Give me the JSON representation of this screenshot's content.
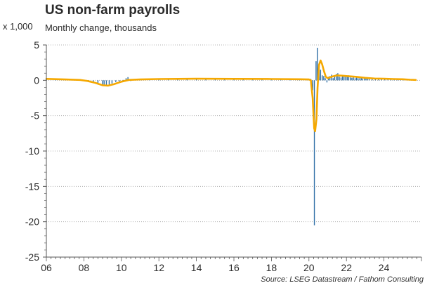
{
  "chart_data": {
    "type": "bar",
    "title": "US non-farm payrolls",
    "subtitle": "Monthly change, thousands",
    "ylabel": "x 1,000",
    "source": "Source: LSEG Datastream / Fathom Consulting",
    "ylim": [
      -25,
      5
    ],
    "xlim": [
      2006.0,
      2026.0
    ],
    "y_ticks": [
      5,
      0,
      -5,
      -10,
      -15,
      -20,
      -25
    ],
    "x_tick_values": [
      2006,
      2008,
      2010,
      2012,
      2014,
      2016,
      2018,
      2020,
      2022,
      2024
    ],
    "x_tick_labels": [
      "06",
      "08",
      "10",
      "12",
      "14",
      "16",
      "18",
      "20",
      "22",
      "24"
    ],
    "grid": "horizontal dotted",
    "colors": {
      "bars": "#2e6ea6",
      "average_line": "#f5a800"
    },
    "series": [
      {
        "type": "bar",
        "points": [
          [
            2006.0,
            0.25
          ],
          [
            2006.5,
            0.2
          ],
          [
            2007.0,
            0.12
          ],
          [
            2007.5,
            0.1
          ],
          [
            2008.0,
            -0.05
          ],
          [
            2008.25,
            -0.15
          ],
          [
            2008.5,
            -0.25
          ],
          [
            2008.75,
            -0.5
          ],
          [
            2009.0,
            -0.75
          ],
          [
            2009.08,
            -0.7
          ],
          [
            2009.2,
            -0.8
          ],
          [
            2009.35,
            -0.6
          ],
          [
            2009.5,
            -0.45
          ],
          [
            2009.7,
            -0.25
          ],
          [
            2009.9,
            -0.15
          ],
          [
            2010.1,
            0.05
          ],
          [
            2010.25,
            0.3
          ],
          [
            2010.35,
            0.45
          ],
          [
            2010.5,
            -0.1
          ],
          [
            2010.75,
            0.1
          ],
          [
            2011.0,
            0.15
          ],
          [
            2011.5,
            0.1
          ],
          [
            2012.0,
            0.2
          ],
          [
            2012.5,
            0.15
          ],
          [
            2013.0,
            0.2
          ],
          [
            2013.5,
            0.18
          ],
          [
            2014.0,
            0.22
          ],
          [
            2014.5,
            0.25
          ],
          [
            2015.0,
            0.25
          ],
          [
            2015.5,
            0.2
          ],
          [
            2016.0,
            0.2
          ],
          [
            2016.5,
            0.18
          ],
          [
            2017.0,
            0.18
          ],
          [
            2017.5,
            0.15
          ],
          [
            2018.0,
            0.2
          ],
          [
            2018.5,
            0.2
          ],
          [
            2019.0,
            0.15
          ],
          [
            2019.5,
            0.15
          ],
          [
            2019.9,
            0.15
          ],
          [
            2020.1,
            0.2
          ],
          [
            2020.2,
            -1.4
          ],
          [
            2020.29,
            -20.5
          ],
          [
            2020.38,
            2.7
          ],
          [
            2020.45,
            4.6
          ],
          [
            2020.54,
            1.7
          ],
          [
            2020.62,
            1.5
          ],
          [
            2020.71,
            0.7
          ],
          [
            2020.79,
            0.6
          ],
          [
            2020.87,
            0.3
          ],
          [
            2020.96,
            -0.3
          ],
          [
            2021.04,
            0.5
          ],
          [
            2021.12,
            0.6
          ],
          [
            2021.21,
            0.8
          ],
          [
            2021.29,
            0.3
          ],
          [
            2021.37,
            0.5
          ],
          [
            2021.46,
            0.9
          ],
          [
            2021.54,
            1.0
          ],
          [
            2021.62,
            0.5
          ],
          [
            2021.71,
            0.4
          ],
          [
            2021.79,
            0.6
          ],
          [
            2021.87,
            0.6
          ],
          [
            2021.96,
            0.6
          ],
          [
            2022.04,
            0.5
          ],
          [
            2022.12,
            0.7
          ],
          [
            2022.21,
            0.4
          ],
          [
            2022.29,
            0.35
          ],
          [
            2022.37,
            0.4
          ],
          [
            2022.46,
            0.3
          ],
          [
            2022.54,
            0.55
          ],
          [
            2022.62,
            0.3
          ],
          [
            2022.71,
            0.3
          ],
          [
            2022.79,
            0.3
          ],
          [
            2022.87,
            0.25
          ],
          [
            2022.96,
            0.3
          ],
          [
            2023.04,
            0.45
          ],
          [
            2023.12,
            0.3
          ],
          [
            2023.21,
            0.25
          ],
          [
            2023.37,
            0.3
          ],
          [
            2023.54,
            0.2
          ],
          [
            2023.71,
            0.25
          ],
          [
            2023.87,
            0.2
          ],
          [
            2024.04,
            0.25
          ],
          [
            2024.21,
            0.3
          ],
          [
            2024.37,
            0.2
          ],
          [
            2024.54,
            0.15
          ],
          [
            2024.71,
            0.2
          ],
          [
            2024.87,
            0.2
          ],
          [
            2025.04,
            0.15
          ],
          [
            2025.21,
            0.1
          ],
          [
            2025.37,
            0.05
          ],
          [
            2025.54,
            0.05
          ],
          [
            2025.71,
            0.1
          ]
        ]
      },
      {
        "type": "line",
        "points": [
          [
            2006.0,
            0.2
          ],
          [
            2007.0,
            0.12
          ],
          [
            2007.8,
            0.05
          ],
          [
            2008.2,
            -0.1
          ],
          [
            2008.6,
            -0.35
          ],
          [
            2009.0,
            -0.7
          ],
          [
            2009.3,
            -0.75
          ],
          [
            2009.6,
            -0.55
          ],
          [
            2010.0,
            -0.2
          ],
          [
            2010.4,
            0.05
          ],
          [
            2011.0,
            0.12
          ],
          [
            2012.0,
            0.18
          ],
          [
            2014.0,
            0.22
          ],
          [
            2016.0,
            0.2
          ],
          [
            2018.0,
            0.18
          ],
          [
            2019.5,
            0.15
          ],
          [
            2020.0,
            0.12
          ],
          [
            2020.1,
            0.0
          ],
          [
            2020.2,
            -2.5
          ],
          [
            2020.28,
            -6.8
          ],
          [
            2020.33,
            -7.2
          ],
          [
            2020.4,
            -5.5
          ],
          [
            2020.46,
            -1.0
          ],
          [
            2020.54,
            2.2
          ],
          [
            2020.62,
            2.8
          ],
          [
            2020.7,
            2.3
          ],
          [
            2020.8,
            1.3
          ],
          [
            2020.9,
            0.5
          ],
          [
            2021.0,
            0.3
          ],
          [
            2021.2,
            0.5
          ],
          [
            2021.5,
            0.7
          ],
          [
            2021.8,
            0.65
          ],
          [
            2022.0,
            0.6
          ],
          [
            2022.5,
            0.5
          ],
          [
            2023.0,
            0.35
          ],
          [
            2023.5,
            0.25
          ],
          [
            2024.0,
            0.22
          ],
          [
            2024.5,
            0.18
          ],
          [
            2025.0,
            0.15
          ],
          [
            2025.4,
            0.08
          ],
          [
            2025.7,
            0.05
          ]
        ]
      }
    ]
  }
}
